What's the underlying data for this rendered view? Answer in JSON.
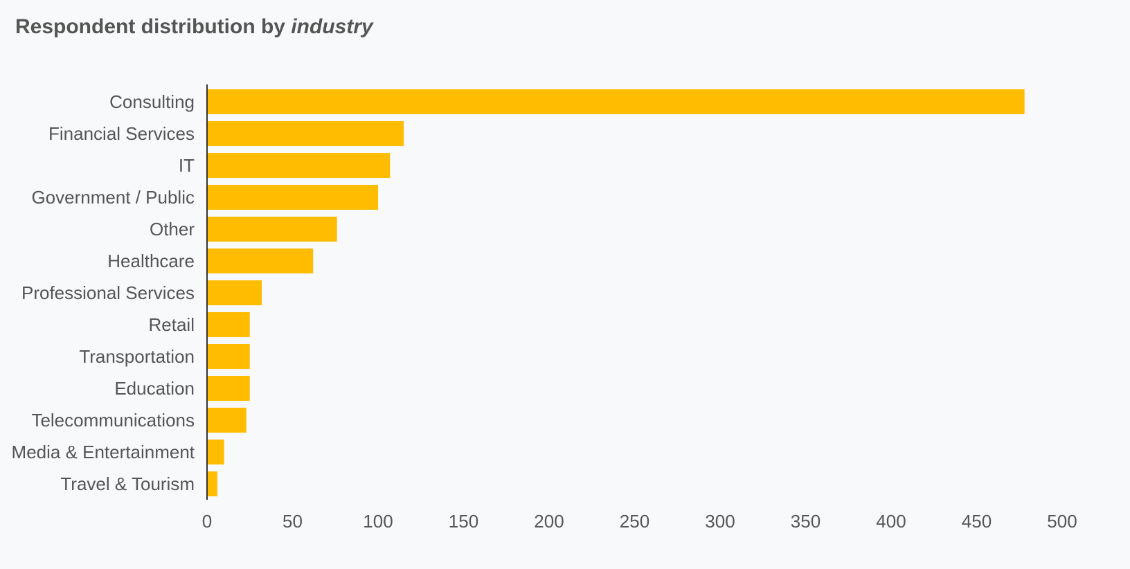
{
  "title": {
    "prefix": "Respondent distribution by ",
    "emphasis": "industry"
  },
  "colors": {
    "bar": "#FFBC00",
    "axis": "#333333",
    "text": "#555555",
    "background": "#f8f9fa"
  },
  "chart_data": {
    "type": "bar",
    "orientation": "horizontal",
    "title": "Respondent distribution by industry",
    "xlabel": "",
    "ylabel": "",
    "categories": [
      "Consulting",
      "Financial Services",
      "IT",
      "Government / Public",
      "Other",
      "Healthcare",
      "Professional Services",
      "Retail",
      "Transportation",
      "Education",
      "Telecommunications",
      "Media & Entertainment",
      "Travel & Tourism"
    ],
    "values": [
      478,
      115,
      107,
      100,
      76,
      62,
      32,
      25,
      25,
      25,
      23,
      10,
      6
    ],
    "xlim": [
      0,
      500
    ],
    "xticks": [
      0,
      50,
      100,
      150,
      200,
      250,
      300,
      350,
      400,
      450,
      500
    ],
    "grid": false,
    "legend": "none"
  }
}
